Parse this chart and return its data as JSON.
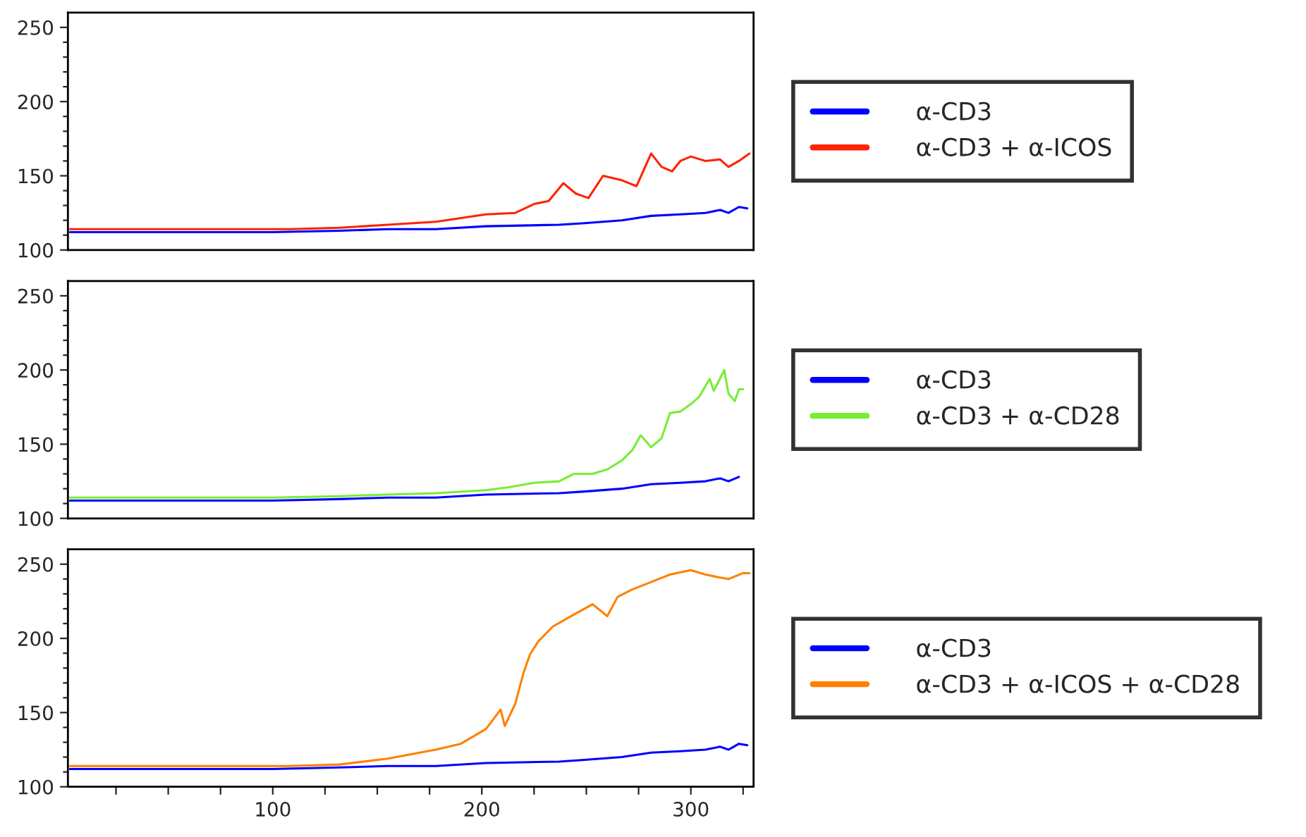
{
  "chart_data": [
    {
      "type": "line",
      "xlim": [
        2,
        330
      ],
      "ylim": [
        100,
        260
      ],
      "tick_labels": "y",
      "legend": "right",
      "yticks": [
        100,
        {
          "value": 110,
          "label": null
        },
        {
          "value": 120,
          "label": null
        },
        {
          "value": 130,
          "label": null
        },
        {
          "value": 140,
          "label": null
        },
        150,
        {
          "value": 160,
          "label": null
        },
        {
          "value": 170,
          "label": null
        },
        {
          "value": 180,
          "label": null
        },
        {
          "value": 190,
          "label": null
        },
        200,
        {
          "value": 210,
          "label": null
        },
        {
          "value": 220,
          "label": null
        },
        {
          "value": 230,
          "label": null
        },
        {
          "value": 240,
          "label": null
        },
        250
      ],
      "series": [
        {
          "name": "α-CD3",
          "color": "#0000ff",
          "x": [
            3,
            20,
            40,
            60,
            100,
            132,
            155,
            178,
            202,
            237,
            248,
            267,
            281,
            295,
            307,
            314,
            318,
            323,
            327
          ],
          "values": [
            112,
            112,
            112,
            112,
            112,
            113,
            114,
            114,
            116,
            117,
            118,
            120,
            123,
            124,
            125,
            127,
            125,
            129,
            128
          ]
        },
        {
          "name": "α-CD3 + α-ICOS",
          "color": "#ff2200",
          "x": [
            3,
            20,
            40,
            60,
            100,
            108,
            132,
            155,
            178,
            202,
            216,
            225,
            232,
            239,
            245,
            251,
            258,
            267,
            274,
            281,
            286,
            291,
            295,
            300,
            307,
            314,
            318,
            323,
            328
          ],
          "values": [
            114,
            114,
            114,
            114,
            114,
            114,
            115,
            117,
            119,
            124,
            125,
            131,
            133,
            145,
            138,
            135,
            150,
            147,
            143,
            165,
            156,
            153,
            160,
            163,
            160,
            161,
            156,
            160,
            165
          ]
        }
      ]
    },
    {
      "type": "line",
      "xlim": [
        2,
        330
      ],
      "ylim": [
        100,
        260
      ],
      "tick_labels": "y",
      "legend": "right",
      "yticks": [
        100,
        {
          "value": 110,
          "label": null
        },
        {
          "value": 120,
          "label": null
        },
        {
          "value": 130,
          "label": null
        },
        {
          "value": 140,
          "label": null
        },
        150,
        {
          "value": 160,
          "label": null
        },
        {
          "value": 170,
          "label": null
        },
        {
          "value": 180,
          "label": null
        },
        {
          "value": 190,
          "label": null
        },
        200,
        {
          "value": 210,
          "label": null
        },
        {
          "value": 220,
          "label": null
        },
        {
          "value": 230,
          "label": null
        },
        {
          "value": 240,
          "label": null
        },
        250
      ],
      "series": [
        {
          "name": "α-CD3",
          "color": "#0000ff",
          "x": [
            3,
            20,
            40,
            60,
            100,
            132,
            155,
            178,
            202,
            237,
            248,
            267,
            281,
            295,
            307,
            314,
            318,
            323
          ],
          "values": [
            112,
            112,
            112,
            112,
            112,
            113,
            114,
            114,
            116,
            117,
            118,
            120,
            123,
            124,
            125,
            127,
            125,
            128
          ]
        },
        {
          "name": "α-CD3 + α-CD28",
          "color": "#77ee33",
          "x": [
            3,
            20,
            40,
            60,
            100,
            132,
            155,
            178,
            202,
            213,
            225,
            237,
            244,
            253,
            260,
            267,
            272,
            276,
            281,
            286,
            290,
            295,
            300,
            304,
            309,
            311,
            316,
            318,
            321,
            323,
            325
          ],
          "values": [
            114,
            114,
            114,
            114,
            114,
            115,
            116,
            117,
            119,
            121,
            124,
            125,
            130,
            130,
            133,
            139,
            146,
            156,
            148,
            154,
            171,
            172,
            177,
            182,
            194,
            186,
            200,
            184,
            179,
            187,
            187
          ]
        }
      ]
    },
    {
      "type": "line",
      "xlim": [
        2,
        330
      ],
      "ylim": [
        100,
        260
      ],
      "legend": "right",
      "xticks": [
        {
          "value": 25,
          "label": null
        },
        {
          "value": 50,
          "label": null
        },
        {
          "value": 75,
          "label": null
        },
        100,
        {
          "value": 125,
          "label": null
        },
        {
          "value": 150,
          "label": null
        },
        {
          "value": 175,
          "label": null
        },
        200,
        {
          "value": 225,
          "label": null
        },
        {
          "value": 250,
          "label": null
        },
        {
          "value": 275,
          "label": null
        },
        300,
        {
          "value": 325,
          "label": null
        }
      ],
      "yticks": [
        100,
        {
          "value": 110,
          "label": null
        },
        {
          "value": 120,
          "label": null
        },
        {
          "value": 130,
          "label": null
        },
        {
          "value": 140,
          "label": null
        },
        150,
        {
          "value": 160,
          "label": null
        },
        {
          "value": 170,
          "label": null
        },
        {
          "value": 180,
          "label": null
        },
        {
          "value": 190,
          "label": null
        },
        200,
        {
          "value": 210,
          "label": null
        },
        {
          "value": 220,
          "label": null
        },
        {
          "value": 230,
          "label": null
        },
        {
          "value": 240,
          "label": null
        },
        250
      ],
      "series": [
        {
          "name": "α-CD3",
          "color": "#0000ff",
          "x": [
            3,
            20,
            40,
            60,
            100,
            132,
            155,
            178,
            202,
            237,
            248,
            267,
            281,
            295,
            307,
            314,
            318,
            323,
            327
          ],
          "values": [
            112,
            112,
            112,
            112,
            112,
            113,
            114,
            114,
            116,
            117,
            118,
            120,
            123,
            124,
            125,
            127,
            125,
            129,
            128
          ]
        },
        {
          "name": "α-CD3 + α-ICOS + α-CD28",
          "color": "#ff8000",
          "x": [
            3,
            20,
            40,
            60,
            100,
            108,
            132,
            155,
            178,
            190,
            202,
            209,
            211,
            216,
            220,
            223,
            227,
            234,
            244,
            253,
            260,
            265,
            272,
            281,
            290,
            300,
            307,
            314,
            318,
            325,
            328
          ],
          "values": [
            114,
            114,
            114,
            114,
            114,
            114,
            115,
            119,
            125,
            129,
            139,
            152,
            141,
            156,
            177,
            189,
            198,
            208,
            216,
            223,
            215,
            228,
            233,
            238,
            243,
            246,
            243,
            241,
            240,
            244,
            244
          ]
        }
      ]
    }
  ]
}
